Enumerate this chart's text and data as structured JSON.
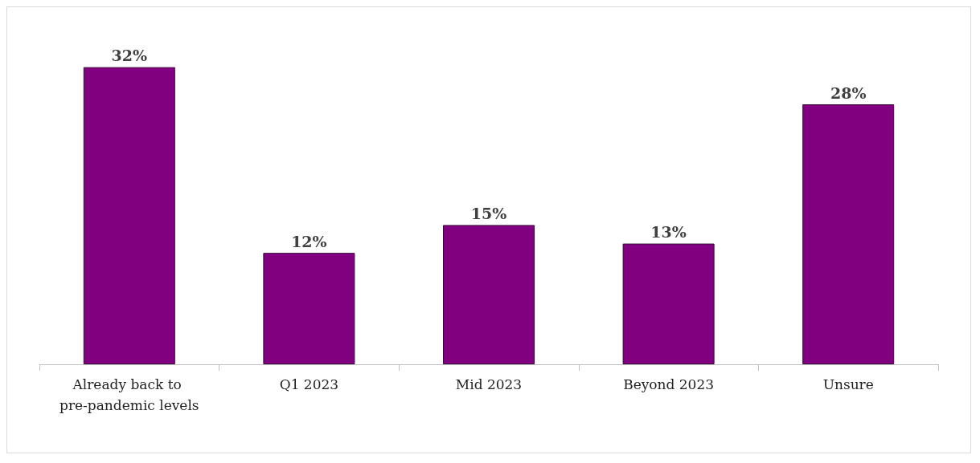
{
  "chart_data": {
    "type": "bar",
    "categories": [
      "Already back to pre-pandemic levels",
      "Q1 2023",
      "Mid 2023",
      "Beyond 2023",
      "Unsure"
    ],
    "values": [
      32,
      12,
      15,
      13,
      28
    ],
    "value_labels": [
      "32%",
      "12%",
      "15%",
      "13%",
      "28%"
    ],
    "color": "#800080"
  }
}
